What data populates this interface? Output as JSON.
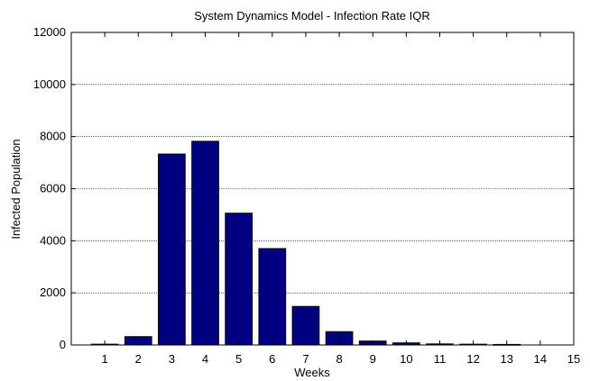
{
  "chart_data": {
    "type": "bar",
    "title": "System Dynamics Model - Infection Rate IQR",
    "xlabel": "Weeks",
    "ylabel": "Infected Population",
    "categories": [
      "1",
      "2",
      "3",
      "4",
      "5",
      "6",
      "7",
      "8",
      "9",
      "10",
      "11",
      "12",
      "13",
      "14",
      "15"
    ],
    "values": [
      30,
      320,
      7330,
      7820,
      5060,
      3700,
      1480,
      510,
      150,
      80,
      40,
      30,
      20,
      0,
      0
    ],
    "ylim": [
      0,
      12000
    ],
    "xlim": [
      0,
      15
    ],
    "yticks": [
      "0",
      "2000",
      "4000",
      "6000",
      "8000",
      "10000",
      "12000"
    ],
    "grid": "horizontal",
    "legend": "none",
    "colors": {
      "bar_fill": "#000080",
      "bar_edge": "#000000",
      "grid": "#000000"
    }
  }
}
